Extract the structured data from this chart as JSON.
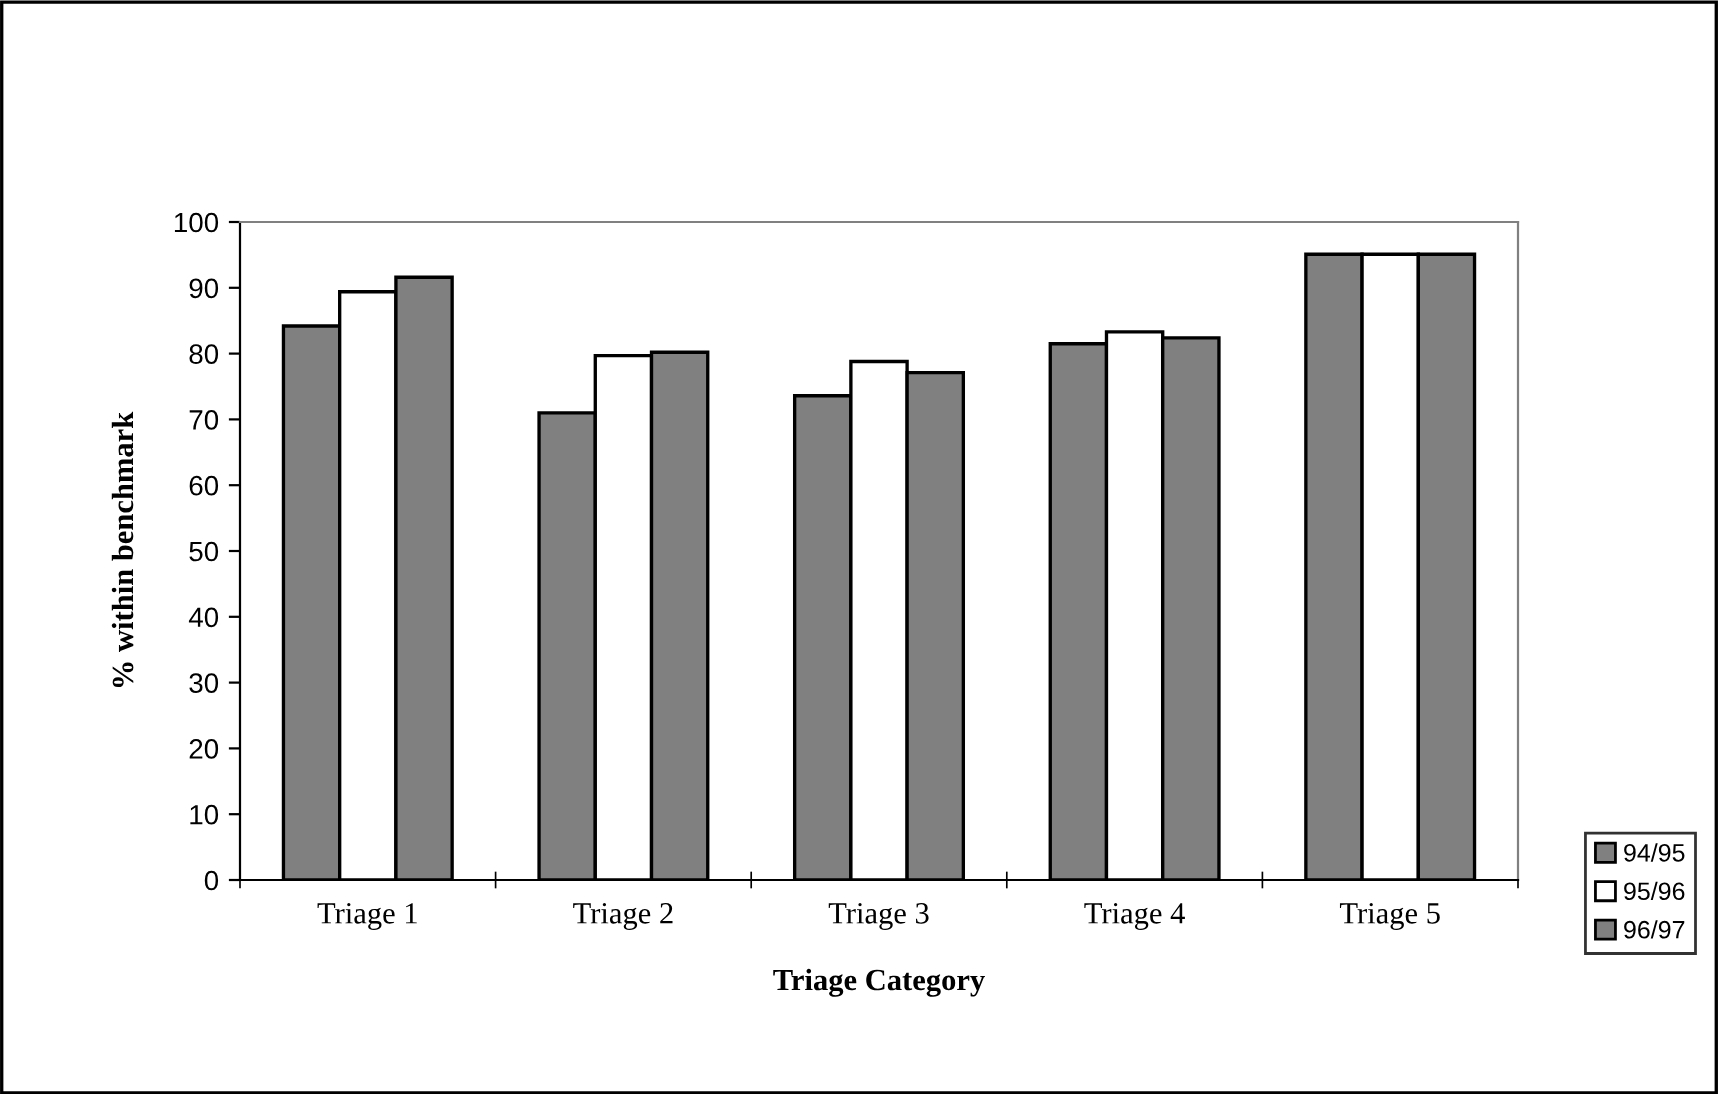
{
  "chart_data": {
    "type": "bar",
    "xlabel": "Triage Category",
    "ylabel": "% within benchmark",
    "categories": [
      "Triage 1",
      "Triage 2",
      "Triage 3",
      "Triage 4",
      "Triage 5"
    ],
    "series": [
      {
        "name": "94/95",
        "color": "#808080",
        "values": [
          84.2,
          71.0,
          73.6,
          81.5,
          95.1
        ]
      },
      {
        "name": "95/96",
        "color": "#ffffff",
        "values": [
          89.4,
          79.7,
          78.8,
          83.3,
          95.1
        ]
      },
      {
        "name": "96/97",
        "color": "#808080",
        "values": [
          91.6,
          80.2,
          77.1,
          82.4,
          95.1
        ]
      }
    ],
    "ylim": [
      0,
      100
    ],
    "yticks": [
      0,
      10,
      20,
      30,
      40,
      50,
      60,
      70,
      80,
      90,
      100
    ],
    "grid": false,
    "legend": "bottom right"
  }
}
